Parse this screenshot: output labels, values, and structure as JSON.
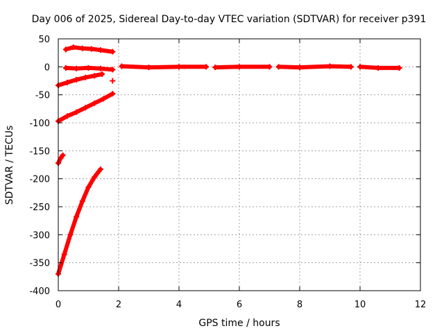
{
  "chart_data": {
    "type": "scatter",
    "title": "Day 006 of 2025, Sidereal Day-to-day VTEC variation (SDTVAR) for receiver p391",
    "xlabel": "GPS time / hours",
    "ylabel": "SDTVAR / TECUs",
    "xlim": [
      0,
      12
    ],
    "ylim": [
      -400,
      50
    ],
    "xticks": [
      0,
      2,
      4,
      6,
      8,
      10,
      12
    ],
    "yticks": [
      50,
      0,
      -50,
      -100,
      -150,
      -200,
      -250,
      -300,
      -350,
      -400
    ],
    "grid": true,
    "marker_color": "#ff0000",
    "segments": [
      {
        "x": [
          0.25,
          0.5,
          0.8,
          1.1,
          1.4,
          1.8
        ],
        "y": [
          31,
          35,
          33,
          32,
          30,
          27
        ]
      },
      {
        "x": [
          0.25,
          0.6,
          1.0,
          1.4,
          1.8
        ],
        "y": [
          -2,
          -3,
          -2,
          -3,
          -5
        ]
      },
      {
        "x": [
          0.0,
          0.3,
          0.6,
          0.9,
          1.2,
          1.45
        ],
        "y": [
          -33,
          -28,
          -23,
          -19,
          -16,
          -13
        ]
      },
      {
        "x": [
          1.8
        ],
        "y": [
          -25
        ]
      },
      {
        "x": [
          0.0,
          0.3,
          0.6,
          0.9,
          1.2,
          1.5,
          1.8
        ],
        "y": [
          -97,
          -88,
          -81,
          -73,
          -65,
          -57,
          -48
        ]
      },
      {
        "x": [
          0.0,
          0.08,
          0.15
        ],
        "y": [
          -172,
          -163,
          -158
        ]
      },
      {
        "x": [
          0.0,
          0.2,
          0.4,
          0.6,
          0.8,
          1.0,
          1.2,
          1.4
        ],
        "y": [
          -370,
          -335,
          -300,
          -268,
          -240,
          -215,
          -197,
          -183
        ]
      },
      {
        "x": [
          2.1,
          3.0,
          4.0,
          4.9
        ],
        "y": [
          1,
          -1,
          0,
          0
        ]
      },
      {
        "x": [
          5.2,
          6.0,
          7.0
        ],
        "y": [
          -1,
          0,
          0
        ]
      },
      {
        "x": [
          7.3,
          8.0,
          9.0,
          9.7
        ],
        "y": [
          0,
          -1,
          1,
          0
        ]
      },
      {
        "x": [
          10.0,
          10.6,
          11.3
        ],
        "y": [
          0,
          -2,
          -2
        ]
      }
    ]
  }
}
